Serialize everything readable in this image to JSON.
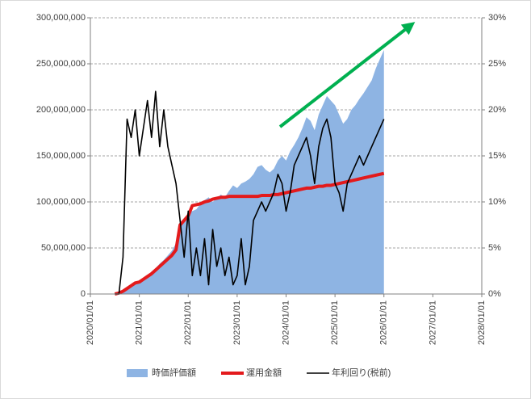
{
  "chart_data": {
    "type": "combo",
    "x": [
      "2020/07/01",
      "2020/08/01",
      "2020/09/01",
      "2020/10/01",
      "2020/11/01",
      "2020/12/01",
      "2021/01/01",
      "2021/02/01",
      "2021/03/01",
      "2021/04/01",
      "2021/05/01",
      "2021/06/01",
      "2021/07/01",
      "2021/08/01",
      "2021/09/01",
      "2021/10/01",
      "2021/11/01",
      "2021/12/01",
      "2022/01/01",
      "2022/02/01",
      "2022/03/01",
      "2022/04/01",
      "2022/05/01",
      "2022/06/01",
      "2022/07/01",
      "2022/08/01",
      "2022/09/01",
      "2022/10/01",
      "2022/11/01",
      "2022/12/01",
      "2023/01/01",
      "2023/02/01",
      "2023/03/01",
      "2023/04/01",
      "2023/05/01",
      "2023/06/01",
      "2023/07/01",
      "2023/08/01",
      "2023/09/01",
      "2023/10/01",
      "2023/11/01",
      "2023/12/01",
      "2024/01/01",
      "2024/02/01",
      "2024/03/01",
      "2024/04/01",
      "2024/05/01",
      "2024/06/01",
      "2024/07/01",
      "2024/08/01",
      "2024/09/01",
      "2024/10/01",
      "2024/11/01",
      "2024/12/01",
      "2025/01/01",
      "2025/02/01",
      "2025/03/01",
      "2025/04/01",
      "2025/05/01",
      "2025/06/01",
      "2025/07/01",
      "2025/08/01",
      "2025/09/01",
      "2025/10/01",
      "2025/11/01",
      "2025/12/01",
      "2026/01/01"
    ],
    "series": [
      {
        "name": "時価評価額",
        "type": "area",
        "color": "#8eb4e3",
        "values": [
          0,
          1000000,
          3000000,
          6000000,
          9000000,
          12000000,
          14000000,
          17000000,
          20000000,
          24000000,
          28000000,
          33000000,
          37000000,
          42000000,
          47000000,
          55000000,
          72000000,
          80000000,
          88000000,
          90000000,
          92000000,
          98000000,
          102000000,
          105000000,
          100000000,
          104000000,
          108000000,
          105000000,
          112000000,
          118000000,
          115000000,
          120000000,
          122000000,
          125000000,
          130000000,
          138000000,
          140000000,
          135000000,
          132000000,
          136000000,
          145000000,
          150000000,
          145000000,
          155000000,
          162000000,
          170000000,
          180000000,
          192000000,
          188000000,
          178000000,
          195000000,
          205000000,
          215000000,
          210000000,
          205000000,
          195000000,
          185000000,
          190000000,
          200000000,
          205000000,
          212000000,
          218000000,
          225000000,
          232000000,
          245000000,
          255000000,
          265000000
        ]
      },
      {
        "name": "運用金額",
        "type": "line",
        "color": "#e31a1c",
        "values": [
          0,
          1000000,
          3000000,
          6000000,
          9000000,
          12000000,
          13000000,
          16000000,
          19000000,
          22000000,
          26000000,
          30000000,
          34000000,
          38000000,
          42000000,
          48000000,
          75000000,
          80000000,
          85000000,
          96000000,
          97000000,
          98000000,
          100000000,
          101000000,
          103000000,
          104000000,
          105000000,
          105000000,
          106000000,
          106000000,
          106000000,
          106000000,
          106000000,
          106000000,
          106000000,
          106000000,
          107000000,
          107000000,
          107000000,
          108000000,
          108000000,
          109000000,
          110000000,
          111000000,
          112000000,
          113000000,
          114000000,
          115000000,
          115000000,
          116000000,
          117000000,
          117000000,
          118000000,
          118000000,
          119000000,
          120000000,
          121000000,
          122000000,
          123000000,
          124000000,
          125000000,
          126000000,
          127000000,
          128000000,
          129000000,
          130000000,
          131000000
        ]
      },
      {
        "name": "年利回り(税前)",
        "type": "line",
        "axis": "y2",
        "color": "#000000",
        "values": [
          0,
          0,
          4,
          19,
          17,
          20,
          15,
          18,
          21,
          17,
          22,
          16,
          20,
          16,
          14,
          12,
          8,
          4,
          9,
          2,
          5,
          2,
          6,
          1,
          7,
          3,
          5,
          2,
          4,
          1,
          2,
          6,
          1,
          3,
          8,
          9,
          10,
          9,
          10,
          11,
          13,
          12,
          9,
          11,
          14,
          15,
          16,
          17,
          15,
          12,
          16,
          18,
          19,
          17,
          12,
          11,
          9,
          12,
          13,
          14,
          15,
          14,
          15,
          16,
          17,
          18,
          19
        ]
      }
    ],
    "xlim": [
      "2020/01/01",
      "2028/01/01"
    ],
    "xticks": [
      "2020/01/01",
      "2021/01/01",
      "2022/01/01",
      "2023/01/01",
      "2024/01/01",
      "2025/01/01",
      "2026/01/01",
      "2027/01/01",
      "2028/01/01"
    ],
    "ylim": [
      0,
      300000000
    ],
    "yticks": [
      0,
      {
        "value": 50000000,
        "label": "50,000,000"
      },
      {
        "value": 100000000,
        "label": "100,000,000"
      },
      {
        "value": 150000000,
        "label": "150,000,000"
      },
      {
        "value": 200000000,
        "label": "200,000,000"
      },
      {
        "value": 250000000,
        "label": "250,000,000"
      },
      {
        "value": 300000000,
        "label": "300,000,000"
      }
    ],
    "y2lim": [
      0,
      30
    ],
    "y2ticks": [
      {
        "value": 0,
        "label": "0%"
      },
      {
        "value": 5,
        "label": "5%"
      },
      {
        "value": 10,
        "label": "10%"
      },
      {
        "value": 15,
        "label": "15%"
      },
      {
        "value": 20,
        "label": "20%"
      },
      {
        "value": 25,
        "label": "25%"
      },
      {
        "value": 30,
        "label": "30%"
      }
    ],
    "grid": true,
    "legend": "bottom"
  }
}
